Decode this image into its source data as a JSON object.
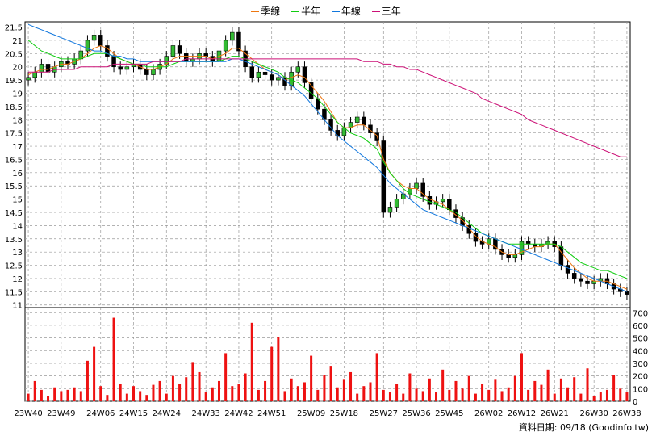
{
  "legend": [
    {
      "name": "季線",
      "color": "#ee7711"
    },
    {
      "name": "半年",
      "color": "#11cc11"
    },
    {
      "name": "年線",
      "color": "#1177dd"
    },
    {
      "name": "三年",
      "color": "#cc1177"
    }
  ],
  "footer_label": "資料日期: 09/18  (Goodinfo.tw)",
  "colors": {
    "up": "#33bb33",
    "down": "#000000",
    "volume": "#ee1111",
    "grid": "#999999"
  },
  "chart_data": {
    "type": "candlestick",
    "x_ticks": [
      "23W40",
      "23W49",
      "24W06",
      "24W15",
      "24W24",
      "24W33",
      "24W42",
      "24W51",
      "25W09",
      "25W18",
      "25W27",
      "25W36",
      "25W45",
      "26W02",
      "26W12",
      "26W21",
      "26W30",
      "26W38"
    ],
    "price_axis": {
      "ticks": [
        11,
        11.5,
        12,
        12.5,
        13,
        13.5,
        14,
        14.5,
        15,
        15.5,
        16,
        16.5,
        17,
        17.5,
        18,
        18.5,
        19,
        19.5,
        20,
        20.5,
        21,
        21.5
      ],
      "ylim": [
        10.9,
        21.7
      ]
    },
    "volume_axis": {
      "ticks": [
        0,
        100,
        200,
        300,
        400,
        500,
        600,
        700
      ],
      "ylim": [
        0,
        740
      ]
    },
    "close": [
      19.6,
      19.8,
      20.1,
      19.8,
      20.0,
      20.2,
      20.1,
      20.3,
      20.6,
      21.0,
      21.2,
      20.8,
      20.4,
      20.0,
      19.9,
      20.0,
      20.1,
      19.9,
      19.7,
      19.9,
      20.1,
      20.4,
      20.8,
      20.5,
      20.2,
      20.3,
      20.5,
      20.4,
      20.2,
      20.6,
      21.0,
      21.3,
      20.6,
      20.0,
      19.6,
      19.8,
      19.7,
      19.5,
      19.6,
      19.3,
      19.8,
      20.0,
      19.4,
      18.8,
      18.4,
      18.0,
      17.6,
      17.4,
      17.7,
      17.9,
      18.1,
      17.8,
      17.5,
      17.2,
      14.5,
      14.7,
      15.0,
      15.2,
      15.4,
      15.6,
      15.1,
      14.8,
      14.9,
      15.0,
      14.6,
      14.3,
      14.0,
      13.7,
      13.4,
      13.3,
      13.5,
      13.1,
      12.9,
      12.8,
      12.9,
      13.4,
      13.3,
      13.2,
      13.3,
      13.4,
      13.2,
      12.5,
      12.2,
      12.0,
      11.9,
      11.8,
      11.9,
      12.0,
      11.8,
      11.6,
      11.5,
      11.4
    ],
    "series": [
      {
        "name": "季線",
        "values": [
          19.7,
          19.8,
          19.9,
          19.9,
          20.0,
          20.1,
          20.1,
          20.2,
          20.3,
          20.5,
          20.7,
          20.8,
          20.7,
          20.5,
          20.3,
          20.2,
          20.1,
          20.0,
          19.9,
          19.9,
          20.0,
          20.1,
          20.3,
          20.4,
          20.4,
          20.4,
          20.4,
          20.4,
          20.3,
          20.4,
          20.5,
          20.7,
          20.7,
          20.5,
          20.3,
          20.1,
          19.9,
          19.8,
          19.7,
          19.5,
          19.6,
          19.7,
          19.6,
          19.3,
          19.0,
          18.7,
          18.3,
          17.9,
          17.7,
          17.7,
          17.8,
          17.8,
          17.6,
          17.4,
          16.5,
          16.0,
          15.7,
          15.5,
          15.4,
          15.4,
          15.2,
          15.0,
          14.9,
          14.8,
          14.6,
          14.4,
          14.2,
          13.9,
          13.6,
          13.4,
          13.3,
          13.2,
          13.0,
          12.9,
          12.9,
          13.0,
          13.1,
          13.2,
          13.2,
          13.3,
          13.3,
          13.0,
          12.7,
          12.4,
          12.2,
          12.0,
          11.9,
          11.9,
          11.9,
          11.8,
          11.7,
          11.6
        ]
      },
      {
        "name": "半年",
        "values": [
          21.0,
          20.8,
          20.6,
          20.5,
          20.4,
          20.3,
          20.3,
          20.3,
          20.3,
          20.4,
          20.5,
          20.5,
          20.5,
          20.4,
          20.3,
          20.2,
          20.1,
          20.1,
          20.0,
          20.0,
          20.0,
          20.0,
          20.1,
          20.2,
          20.2,
          20.2,
          20.2,
          20.2,
          20.2,
          20.2,
          20.3,
          20.4,
          20.4,
          20.3,
          20.2,
          20.1,
          20.0,
          19.9,
          19.8,
          19.6,
          19.5,
          19.4,
          19.2,
          19.0,
          18.8,
          18.5,
          18.2,
          17.9,
          17.7,
          17.5,
          17.4,
          17.3,
          17.1,
          16.9,
          16.4,
          16.0,
          15.7,
          15.4,
          15.2,
          15.1,
          15.0,
          14.9,
          14.8,
          14.7,
          14.6,
          14.5,
          14.3,
          14.1,
          13.9,
          13.7,
          13.6,
          13.5,
          13.4,
          13.3,
          13.3,
          13.3,
          13.3,
          13.3,
          13.3,
          13.3,
          13.3,
          13.2,
          13.0,
          12.8,
          12.6,
          12.5,
          12.4,
          12.3,
          12.3,
          12.2,
          12.1,
          12.0
        ]
      },
      {
        "name": "年線",
        "values": [
          21.6,
          21.5,
          21.4,
          21.3,
          21.2,
          21.1,
          21.0,
          20.9,
          20.8,
          20.7,
          20.6,
          20.6,
          20.5,
          20.4,
          20.4,
          20.3,
          20.3,
          20.2,
          20.2,
          20.2,
          20.2,
          20.2,
          20.2,
          20.2,
          20.2,
          20.2,
          20.2,
          20.2,
          20.2,
          20.2,
          20.2,
          20.3,
          20.3,
          20.2,
          20.1,
          20.0,
          19.9,
          19.8,
          19.7,
          19.5,
          19.3,
          19.1,
          18.9,
          18.6,
          18.3,
          18.0,
          17.7,
          17.4,
          17.2,
          17.0,
          16.8,
          16.6,
          16.4,
          16.2,
          15.9,
          15.6,
          15.4,
          15.2,
          15.0,
          14.8,
          14.6,
          14.5,
          14.4,
          14.3,
          14.2,
          14.1,
          14.0,
          13.9,
          13.8,
          13.7,
          13.6,
          13.5,
          13.4,
          13.3,
          13.2,
          13.1,
          13.0,
          12.9,
          12.8,
          12.7,
          12.6,
          12.5,
          12.4,
          12.3,
          12.2,
          12.1,
          12.0,
          11.9,
          11.8,
          11.7,
          11.6,
          11.5
        ]
      },
      {
        "name": "三年",
        "values": [
          19.8,
          19.8,
          19.8,
          19.8,
          19.9,
          19.9,
          19.9,
          19.9,
          20.0,
          20.0,
          20.0,
          20.0,
          20.0,
          20.1,
          20.1,
          20.1,
          20.1,
          20.1,
          20.1,
          20.2,
          20.2,
          20.2,
          20.2,
          20.2,
          20.3,
          20.3,
          20.3,
          20.3,
          20.3,
          20.3,
          20.3,
          20.3,
          20.3,
          20.3,
          20.3,
          20.3,
          20.3,
          20.3,
          20.3,
          20.3,
          20.3,
          20.3,
          20.3,
          20.3,
          20.3,
          20.3,
          20.3,
          20.3,
          20.3,
          20.3,
          20.3,
          20.2,
          20.2,
          20.2,
          20.1,
          20.1,
          20.0,
          20.0,
          19.9,
          19.9,
          19.8,
          19.7,
          19.6,
          19.5,
          19.4,
          19.3,
          19.2,
          19.1,
          19.0,
          18.8,
          18.7,
          18.6,
          18.5,
          18.4,
          18.3,
          18.2,
          18.0,
          17.9,
          17.8,
          17.7,
          17.6,
          17.5,
          17.4,
          17.3,
          17.2,
          17.1,
          17.0,
          16.9,
          16.8,
          16.7,
          16.6,
          16.6
        ]
      }
    ],
    "volume": [
      60,
      160,
      90,
      40,
      110,
      80,
      90,
      110,
      80,
      320,
      430,
      120,
      50,
      660,
      140,
      60,
      120,
      80,
      50,
      130,
      160,
      60,
      200,
      140,
      190,
      310,
      230,
      70,
      110,
      160,
      380,
      120,
      140,
      220,
      620,
      90,
      160,
      430,
      510,
      80,
      180,
      120,
      150,
      360,
      90,
      210,
      280,
      110,
      170,
      230,
      60,
      120,
      150,
      380,
      90,
      70,
      140,
      60,
      220,
      100,
      80,
      180,
      70,
      250,
      90,
      160,
      100,
      200,
      60,
      140,
      90,
      170,
      80,
      110,
      200,
      380,
      90,
      160,
      130,
      250,
      60,
      180,
      110,
      190,
      60,
      260,
      40,
      70,
      90,
      210,
      100,
      70
    ],
    "grid": true,
    "legend_position": "top-center"
  }
}
